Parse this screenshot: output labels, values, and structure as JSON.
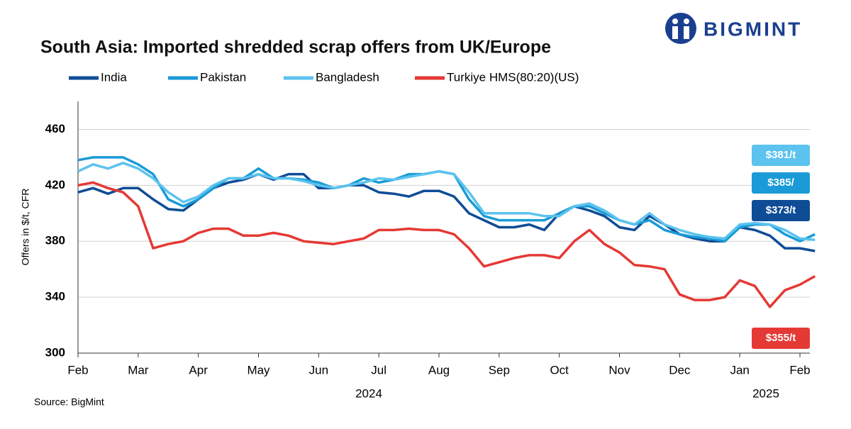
{
  "chart_data": {
    "type": "line",
    "title": "South Asia: Imported shredded scrap offers from UK/Europe",
    "brand": "BIGMINT",
    "y_label": "Offers in $/t, CFR",
    "source": "Source: BigMint",
    "year_labels": [
      "2024",
      "2025"
    ],
    "categories": [
      "Feb",
      null,
      null,
      null,
      "Mar",
      null,
      null,
      null,
      "Apr",
      null,
      null,
      null,
      "May",
      null,
      null,
      null,
      "Jun",
      null,
      null,
      null,
      "Jul",
      null,
      null,
      null,
      "Aug",
      null,
      null,
      null,
      "Sep",
      null,
      null,
      null,
      "Oct",
      null,
      null,
      null,
      "Nov",
      null,
      null,
      null,
      "Dec",
      null,
      null,
      null,
      "Jan",
      null,
      null,
      null,
      "Feb",
      null
    ],
    "ylim": [
      300,
      480
    ],
    "yticks": [
      300,
      340,
      380,
      420,
      460
    ],
    "grid": true,
    "series": [
      {
        "name": "India",
        "color": "#0f4c96",
        "end_label": "$373/t",
        "values": [
          415,
          418,
          414,
          418,
          418,
          410,
          403,
          402,
          410,
          418,
          422,
          424,
          428,
          424,
          428,
          428,
          418,
          418,
          420,
          420,
          415,
          414,
          412,
          416,
          416,
          412,
          400,
          395,
          390,
          390,
          392,
          388,
          400,
          405,
          402,
          398,
          390,
          388,
          398,
          392,
          385,
          382,
          380,
          380,
          390,
          388,
          384,
          375,
          375,
          373
        ]
      },
      {
        "name": "Pakistan",
        "color": "#1a9bd7",
        "end_label": "$385/",
        "values": [
          438,
          440,
          440,
          440,
          435,
          428,
          410,
          405,
          410,
          418,
          425,
          425,
          432,
          425,
          425,
          424,
          422,
          418,
          420,
          425,
          422,
          424,
          428,
          428,
          430,
          428,
          410,
          398,
          395,
          395,
          395,
          395,
          400,
          405,
          405,
          400,
          395,
          392,
          395,
          388,
          385,
          383,
          382,
          380,
          390,
          392,
          392,
          385,
          380,
          385
        ]
      },
      {
        "name": "Bangladesh",
        "color": "#5cc3ee",
        "end_label": "$381/t",
        "values": [
          430,
          435,
          432,
          436,
          432,
          425,
          415,
          408,
          412,
          420,
          425,
          425,
          428,
          425,
          425,
          423,
          420,
          418,
          420,
          422,
          425,
          424,
          426,
          428,
          430,
          428,
          415,
          400,
          400,
          400,
          400,
          398,
          398,
          405,
          407,
          402,
          395,
          392,
          400,
          392,
          388,
          385,
          383,
          382,
          392,
          393,
          392,
          388,
          382,
          381
        ]
      },
      {
        "name": "Turkiye HMS(80:20)(US)",
        "color": "#e53935",
        "end_label": "$355/t",
        "values": [
          420,
          422,
          418,
          415,
          405,
          375,
          378,
          380,
          386,
          389,
          389,
          384,
          384,
          386,
          384,
          380,
          379,
          378,
          380,
          382,
          388,
          388,
          389,
          388,
          388,
          385,
          375,
          362,
          365,
          368,
          370,
          370,
          368,
          380,
          388,
          378,
          372,
          363,
          362,
          360,
          342,
          338,
          338,
          340,
          352,
          348,
          333,
          345,
          349,
          355
        ]
      }
    ]
  }
}
